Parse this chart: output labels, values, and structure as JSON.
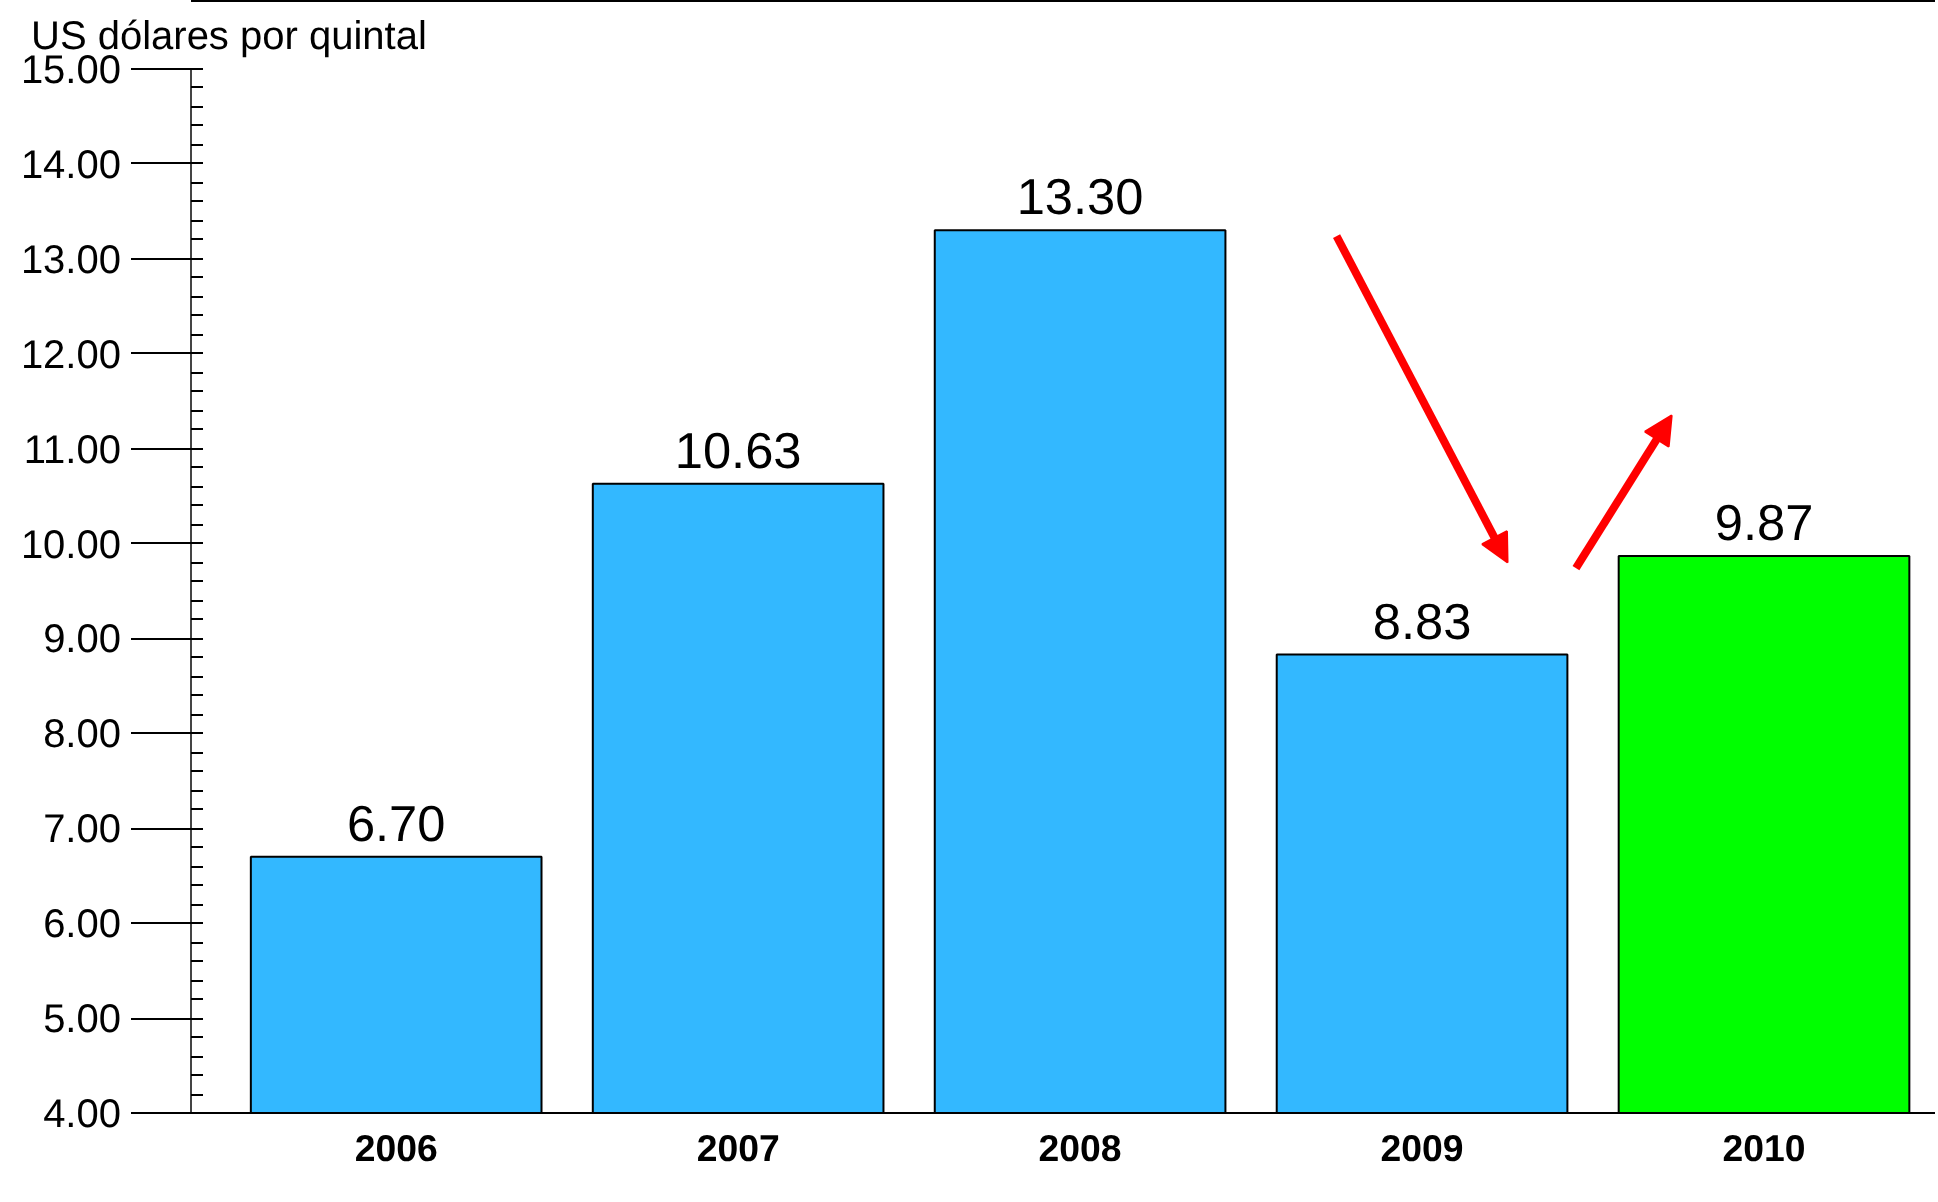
{
  "chart_data": {
    "type": "bar",
    "ylabel": "US dólares por quintal",
    "categories": [
      "2006",
      "2007",
      "2008",
      "2009",
      "2010"
    ],
    "values": [
      6.7,
      10.63,
      13.3,
      8.83,
      9.87
    ],
    "colors": [
      "#33b8ff",
      "#33b8ff",
      "#33b8ff",
      "#33b8ff",
      "#00ff00"
    ],
    "value_labels": [
      "6.70",
      "10.63",
      "13.30",
      "8.83",
      "9.87"
    ],
    "ylim": [
      4,
      15
    ],
    "yticks": [
      {
        "value": 4,
        "label": "4.00"
      },
      {
        "value": 5,
        "label": "5.00"
      },
      {
        "value": 6,
        "label": "6.00"
      },
      {
        "value": 7,
        "label": "7.00"
      },
      {
        "value": 8,
        "label": "8.00"
      },
      {
        "value": 9,
        "label": "9.00"
      },
      {
        "value": 10,
        "label": "10.00"
      },
      {
        "value": 11,
        "label": "11.00"
      },
      {
        "value": 12,
        "label": "12.00"
      },
      {
        "value": 13,
        "label": "13.00"
      },
      {
        "value": 14,
        "label": "14.00"
      },
      {
        "value": 15,
        "label": "15.00"
      }
    ],
    "grid": false
  }
}
